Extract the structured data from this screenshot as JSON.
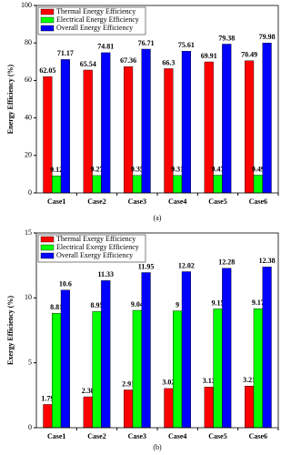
{
  "chart_data": [
    {
      "type": "bar",
      "y_label": "Energy Efficiency (%)",
      "caption": "(a)",
      "categories": [
        "Case1",
        "Case2",
        "Case3",
        "Case4",
        "Case5",
        "Case6"
      ],
      "series": [
        {
          "name": "Thermal Energy Efficiency",
          "color": "#ff0000",
          "values": [
            62.05,
            65.54,
            67.36,
            66.3,
            69.91,
            70.49
          ]
        },
        {
          "name": "Electrical Energy Efficiency",
          "color": "#00ff00",
          "values": [
            9.12,
            9.27,
            9.35,
            9.31,
            9.47,
            9.49
          ]
        },
        {
          "name": "Overall Energy Efficiency",
          "color": "#0000ff",
          "values": [
            71.17,
            74.81,
            76.71,
            75.61,
            79.38,
            79.98
          ]
        }
      ],
      "ylim": [
        0,
        100
      ],
      "yticks": [
        0,
        20,
        40,
        60,
        80,
        100
      ],
      "legend": "top-left",
      "data_labels": true
    },
    {
      "type": "bar",
      "y_label": "Exergy Efficiency (%)",
      "caption": "(b)",
      "categories": [
        "Case1",
        "Case2",
        "Case3",
        "Case4",
        "Case5",
        "Case6"
      ],
      "series": [
        {
          "name": "Thermal Exergy Efficiency",
          "color": "#ff0000",
          "values": [
            1.79,
            2.38,
            2.91,
            3.02,
            3.13,
            3.21
          ]
        },
        {
          "name": "Electrical Exergy Efficiency",
          "color": "#00ff00",
          "values": [
            8.81,
            8.95,
            9.04,
            9,
            9.15,
            9.17
          ]
        },
        {
          "name": "Overall Exergy Efficiency",
          "color": "#0000ff",
          "values": [
            10.6,
            11.33,
            11.95,
            12.02,
            12.28,
            12.38
          ]
        }
      ],
      "ylim": [
        0,
        15
      ],
      "yticks": [
        0,
        5,
        10,
        15
      ],
      "legend": "top-left",
      "data_labels": true
    }
  ]
}
